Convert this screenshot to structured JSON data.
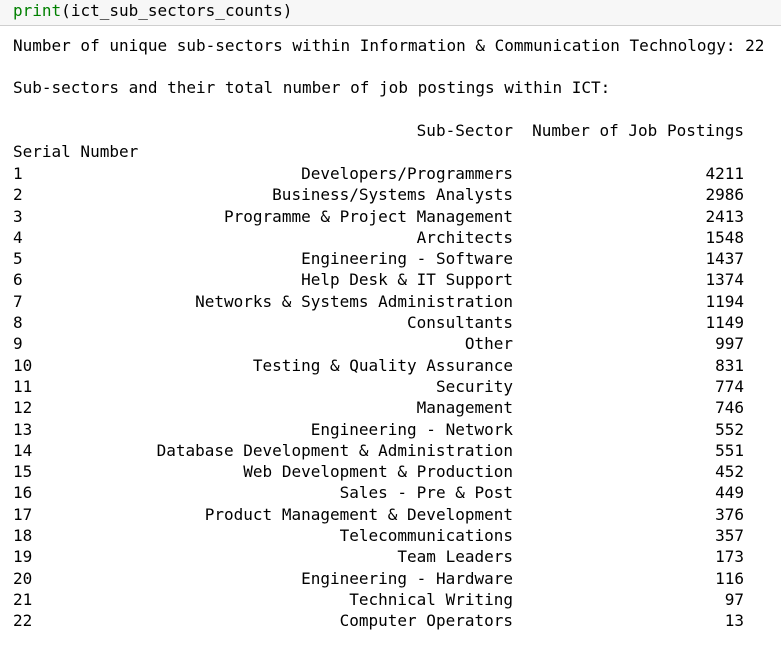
{
  "code_cell": {
    "func": "print",
    "arg": "ict_sub_sectors_counts"
  },
  "output": {
    "unique_line": "Number of unique sub-sectors within Information & Communication Technology: 22",
    "totals_line": "Sub-sectors and their total number of job postings within ICT:",
    "columns": {
      "sub_sector": "Sub-Sector",
      "count": "Number of Job Postings"
    },
    "index_name": "Serial Number",
    "rows": [
      {
        "sn": "1",
        "sub": "Developers/Programmers",
        "cnt": "4211"
      },
      {
        "sn": "2",
        "sub": "Business/Systems Analysts",
        "cnt": "2986"
      },
      {
        "sn": "3",
        "sub": "Programme & Project Management",
        "cnt": "2413"
      },
      {
        "sn": "4",
        "sub": "Architects",
        "cnt": "1548"
      },
      {
        "sn": "5",
        "sub": "Engineering - Software",
        "cnt": "1437"
      },
      {
        "sn": "6",
        "sub": "Help Desk & IT Support",
        "cnt": "1374"
      },
      {
        "sn": "7",
        "sub": "Networks & Systems Administration",
        "cnt": "1194"
      },
      {
        "sn": "8",
        "sub": "Consultants",
        "cnt": "1149"
      },
      {
        "sn": "9",
        "sub": "Other",
        "cnt": "997"
      },
      {
        "sn": "10",
        "sub": "Testing & Quality Assurance",
        "cnt": "831"
      },
      {
        "sn": "11",
        "sub": "Security",
        "cnt": "774"
      },
      {
        "sn": "12",
        "sub": "Management",
        "cnt": "746"
      },
      {
        "sn": "13",
        "sub": "Engineering - Network",
        "cnt": "552"
      },
      {
        "sn": "14",
        "sub": "Database Development & Administration",
        "cnt": "551"
      },
      {
        "sn": "15",
        "sub": "Web Development & Production",
        "cnt": "452"
      },
      {
        "sn": "16",
        "sub": "Sales - Pre & Post",
        "cnt": "449"
      },
      {
        "sn": "17",
        "sub": "Product Management & Development",
        "cnt": "376"
      },
      {
        "sn": "18",
        "sub": "Telecommunications",
        "cnt": "357"
      },
      {
        "sn": "19",
        "sub": "Team Leaders",
        "cnt": "173"
      },
      {
        "sn": "20",
        "sub": "Engineering - Hardware",
        "cnt": "116"
      },
      {
        "sn": "21",
        "sub": "Technical Writing",
        "cnt": "97"
      },
      {
        "sn": "22",
        "sub": "Computer Operators",
        "cnt": "13"
      }
    ]
  }
}
